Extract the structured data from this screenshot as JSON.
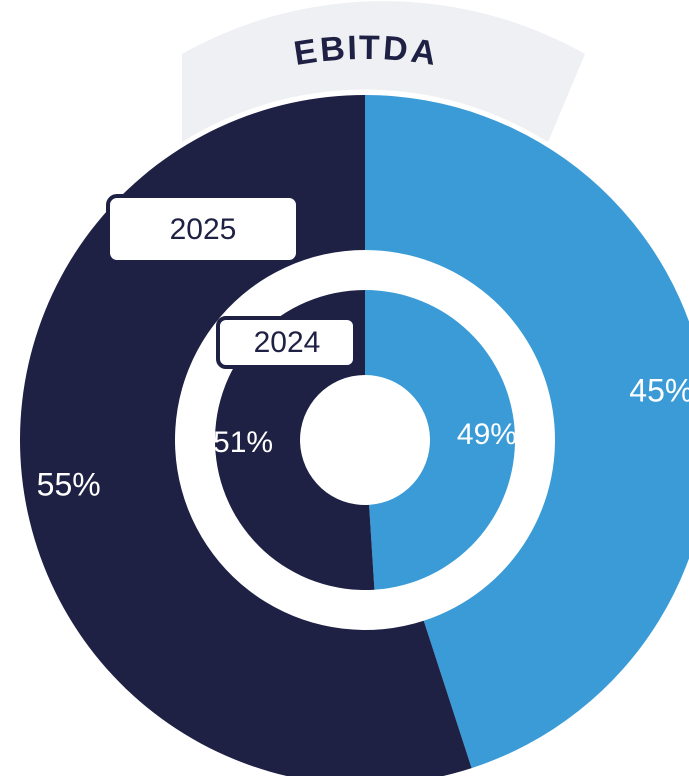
{
  "chart_data": {
    "type": "donut",
    "title": "EBITDA",
    "colors": [
      "#3a9bd7",
      "#1e2044"
    ],
    "series": [
      {
        "name": "2025",
        "values": [
          45,
          55
        ],
        "value_labels": [
          "45%",
          "55%"
        ]
      },
      {
        "name": "2024",
        "values": [
          49,
          51
        ],
        "value_labels": [
          "49%",
          "51%"
        ]
      }
    ]
  }
}
